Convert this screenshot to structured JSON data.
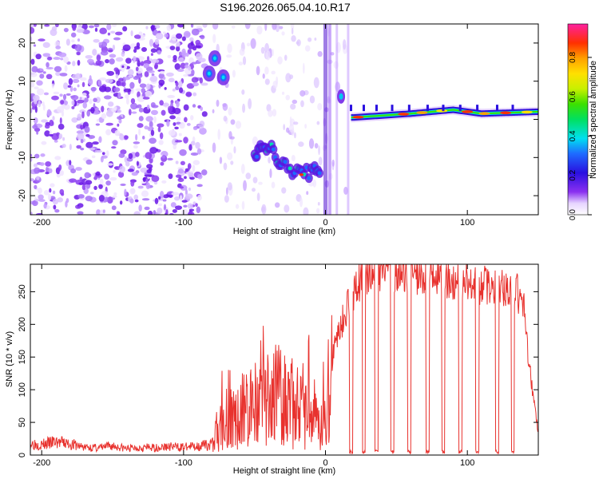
{
  "title": "S196.2026.065.04.10.R17",
  "chart_data": [
    {
      "type": "heatmap",
      "name": "spectrogram",
      "xlabel": "Height of straight line (km)",
      "ylabel": "Frequency (Hz)",
      "xlim": [
        -208,
        150
      ],
      "ylim": [
        -25,
        25
      ],
      "xticks": [
        -200,
        -100,
        0,
        100
      ],
      "yticks": [
        -20,
        -10,
        0,
        10,
        20
      ],
      "colorbar": {
        "label": "Normalized spectral amplitude",
        "range": [
          0,
          0.97
        ],
        "ticks": [
          0.0,
          0.2,
          0.4,
          0.6,
          0.8
        ],
        "tick_labels": [
          "0.0",
          "0.2",
          "0.4",
          "0.6",
          "0.8"
        ]
      },
      "features": [
        {
          "name": "background-noise",
          "x_range": [
            -208,
            -85
          ],
          "freq_range": [
            -25,
            25
          ],
          "amplitude": 0.1
        },
        {
          "name": "upper-blobs",
          "x": [
            -82,
            -78,
            -72
          ],
          "freq": [
            12,
            16,
            11
          ],
          "amplitude": 0.3
        },
        {
          "name": "descending-track",
          "x": [
            -50,
            -45,
            -38,
            -30,
            -20,
            -10,
            -3
          ],
          "freq": [
            -10,
            -6,
            -8,
            -12,
            -14,
            -14,
            -13
          ],
          "amplitude": 0.45
        },
        {
          "name": "carrier-line",
          "x": [
            20,
            60,
            90,
            110,
            150
          ],
          "freq": [
            0.5,
            1.5,
            2.5,
            1.5,
            2
          ],
          "amplitude": 0.9
        }
      ]
    },
    {
      "type": "line",
      "name": "snr",
      "xlabel": "Height of straight line (km)",
      "ylabel": "SNR (10 * v/v)",
      "xlim": [
        -208,
        150
      ],
      "ylim": [
        0,
        292
      ],
      "xticks": [
        -200,
        -100,
        0,
        100
      ],
      "yticks": [
        0,
        50,
        100,
        150,
        200,
        250
      ],
      "color": "#e8322e",
      "x": [
        -208,
        -200,
        -190,
        -180,
        -170,
        -160,
        -150,
        -140,
        -130,
        -120,
        -110,
        -100,
        -90,
        -80,
        -75,
        -70,
        -65,
        -60,
        -55,
        -50,
        -45,
        -40,
        -35,
        -30,
        -25,
        -20,
        -15,
        -10,
        -5,
        0,
        2,
        5,
        8,
        12,
        15,
        20,
        25,
        30,
        35,
        40,
        45,
        50,
        55,
        60,
        65,
        70,
        75,
        80,
        85,
        90,
        95,
        100,
        105,
        110,
        115,
        120,
        125,
        130,
        135,
        140,
        145,
        150
      ],
      "y": [
        18,
        16,
        20,
        17,
        12,
        11,
        14,
        10,
        12,
        11,
        13,
        12,
        14,
        16,
        40,
        62,
        55,
        70,
        65,
        75,
        80,
        82,
        90,
        105,
        78,
        85,
        65,
        70,
        60,
        62,
        100,
        148,
        185,
        205,
        225,
        250,
        268,
        275,
        280,
        282,
        285,
        282,
        278,
        280,
        278,
        275,
        275,
        272,
        270,
        268,
        262,
        268,
        258,
        262,
        255,
        258,
        255,
        250,
        248,
        222,
        110,
        35
      ],
      "dropouts_x": [
        18,
        27,
        36,
        47,
        59,
        72,
        83,
        95,
        107,
        121,
        132
      ]
    }
  ]
}
